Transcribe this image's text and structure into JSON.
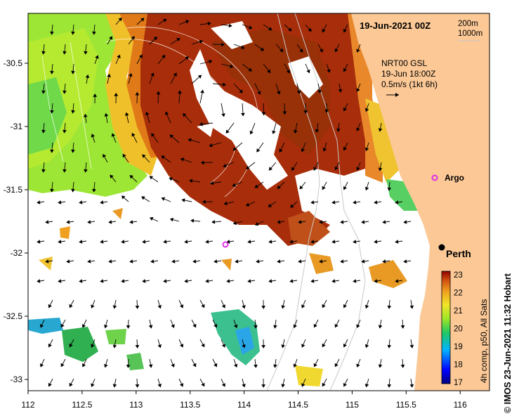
{
  "map": {
    "date_label": "19-Jun-2021 00Z",
    "contour_legend": [
      "200m",
      "1000m"
    ],
    "current_note": [
      "NRT00 GSL",
      "19-Jun 18:00Z",
      "0.5m/s (1kt 6h)"
    ],
    "x_ticks": [
      "112",
      "112.5",
      "113",
      "113.5",
      "114",
      "114.5",
      "115",
      "115.5",
      "116"
    ],
    "y_ticks": [
      "-30.5",
      "-31",
      "-31.5",
      "-32",
      "-32.5",
      "-33"
    ],
    "places": [
      {
        "name": "Argo",
        "lon": 115.75,
        "lat": -31.45
      },
      {
        "name": "Perth",
        "lon": 115.86,
        "lat": -31.95
      }
    ],
    "argo_float_offshore": {
      "lon": 113.84,
      "lat": -31.93
    },
    "colorbar": {
      "title": "4h comp, p50, All Sats",
      "ticks": [
        "23",
        "22",
        "21",
        "20",
        "19",
        "18",
        "17"
      ]
    },
    "credit": "© IMOS 23-Jun-2021 11:32 Hobart",
    "colors": {
      "land": "#fbc896",
      "warm": "#a82d0a",
      "cool": "#8fe23c",
      "argo_marker": "#e030e8",
      "contour": "#c8c8c8"
    }
  }
}
